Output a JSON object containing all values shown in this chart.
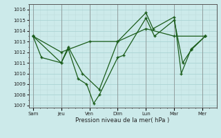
{
  "title": "",
  "xlabel": "Pression niveau de la mer( hPa )",
  "ylabel": "",
  "bg_color": "#cceaea",
  "line_color": "#1a5c1a",
  "grid_major_color": "#aad4d4",
  "grid_minor_color": "#bedddd",
  "tick_labels": [
    "Sam",
    "Jeu",
    "Ven",
    "Dim",
    "Lun",
    "Mar",
    "Mer"
  ],
  "tick_positions": [
    0,
    2,
    4,
    6,
    8,
    10,
    12
  ],
  "xlim": [
    -0.3,
    13.0
  ],
  "ylim": [
    1006.8,
    1016.5
  ],
  "yticks": [
    1007,
    1008,
    1009,
    1010,
    1011,
    1012,
    1013,
    1014,
    1015,
    1016
  ],
  "lines": [
    {
      "x": [
        0,
        0.6,
        2.0,
        2.5,
        3.2,
        3.8,
        4.3,
        4.7,
        6.0,
        6.4,
        8.0,
        8.6,
        10.0,
        10.6,
        11.2,
        12.2
      ],
      "y": [
        1013.5,
        1011.5,
        1011.0,
        1012.3,
        1009.5,
        1009.0,
        1007.2,
        1008.0,
        1011.5,
        1011.7,
        1015.2,
        1013.5,
        1015.0,
        1011.0,
        1012.2,
        1013.5
      ]
    },
    {
      "x": [
        0,
        2.0,
        2.5,
        3.5,
        4.7,
        6.0,
        8.0,
        8.5,
        10.0,
        10.5,
        11.2,
        12.2
      ],
      "y": [
        1013.5,
        1011.0,
        1012.5,
        1010.0,
        1008.5,
        1013.0,
        1015.7,
        1014.2,
        1015.3,
        1010.0,
        1012.3,
        1013.5
      ]
    },
    {
      "x": [
        0,
        2.0,
        4.0,
        6.0,
        8.0,
        10.0,
        12.2
      ],
      "y": [
        1013.5,
        1012.0,
        1013.0,
        1013.0,
        1014.2,
        1013.5,
        1013.5
      ]
    }
  ]
}
